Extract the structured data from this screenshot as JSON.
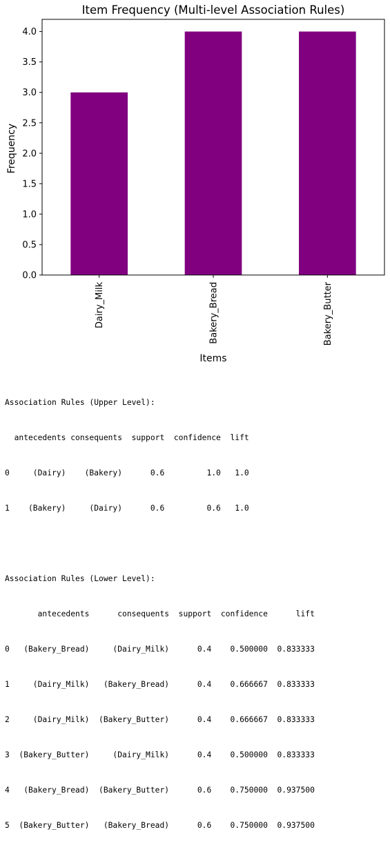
{
  "chart_data": {
    "type": "bar",
    "title": "Item Frequency (Multi-level Association Rules)",
    "xlabel": "Items",
    "ylabel": "Frequency",
    "categories": [
      "Dairy_Milk",
      "Bakery_Bread",
      "Bakery_Butter"
    ],
    "values": [
      3,
      4,
      4
    ],
    "ylim": [
      0,
      4.2
    ],
    "yticks": [
      "0.0",
      "0.5",
      "1.0",
      "1.5",
      "2.0",
      "2.5",
      "3.0",
      "3.5",
      "4.0"
    ],
    "bar_color": "#800080",
    "grid": false
  },
  "console": {
    "upper_title": "Association Rules (Upper Level):",
    "upper_header": "  antecedents consequents  support  confidence  lift",
    "upper_rows": [
      "0     (Dairy)    (Bakery)      0.6         1.0   1.0",
      "1    (Bakery)     (Dairy)      0.6         0.6   1.0"
    ],
    "lower_title": "Association Rules (Lower Level):",
    "lower_header": "       antecedents      consequents  support  confidence      lift",
    "lower_rows": [
      "0   (Bakery_Bread)     (Dairy_Milk)      0.4    0.500000  0.833333",
      "1     (Dairy_Milk)   (Bakery_Bread)      0.4    0.666667  0.833333",
      "2     (Dairy_Milk)  (Bakery_Butter)      0.4    0.666667  0.833333",
      "3  (Bakery_Butter)     (Dairy_Milk)      0.4    0.500000  0.833333",
      "4   (Bakery_Bread)  (Bakery_Butter)      0.6    0.750000  0.937500",
      "5  (Bakery_Butter)   (Bakery_Bread)      0.6    0.750000  0.937500"
    ]
  }
}
